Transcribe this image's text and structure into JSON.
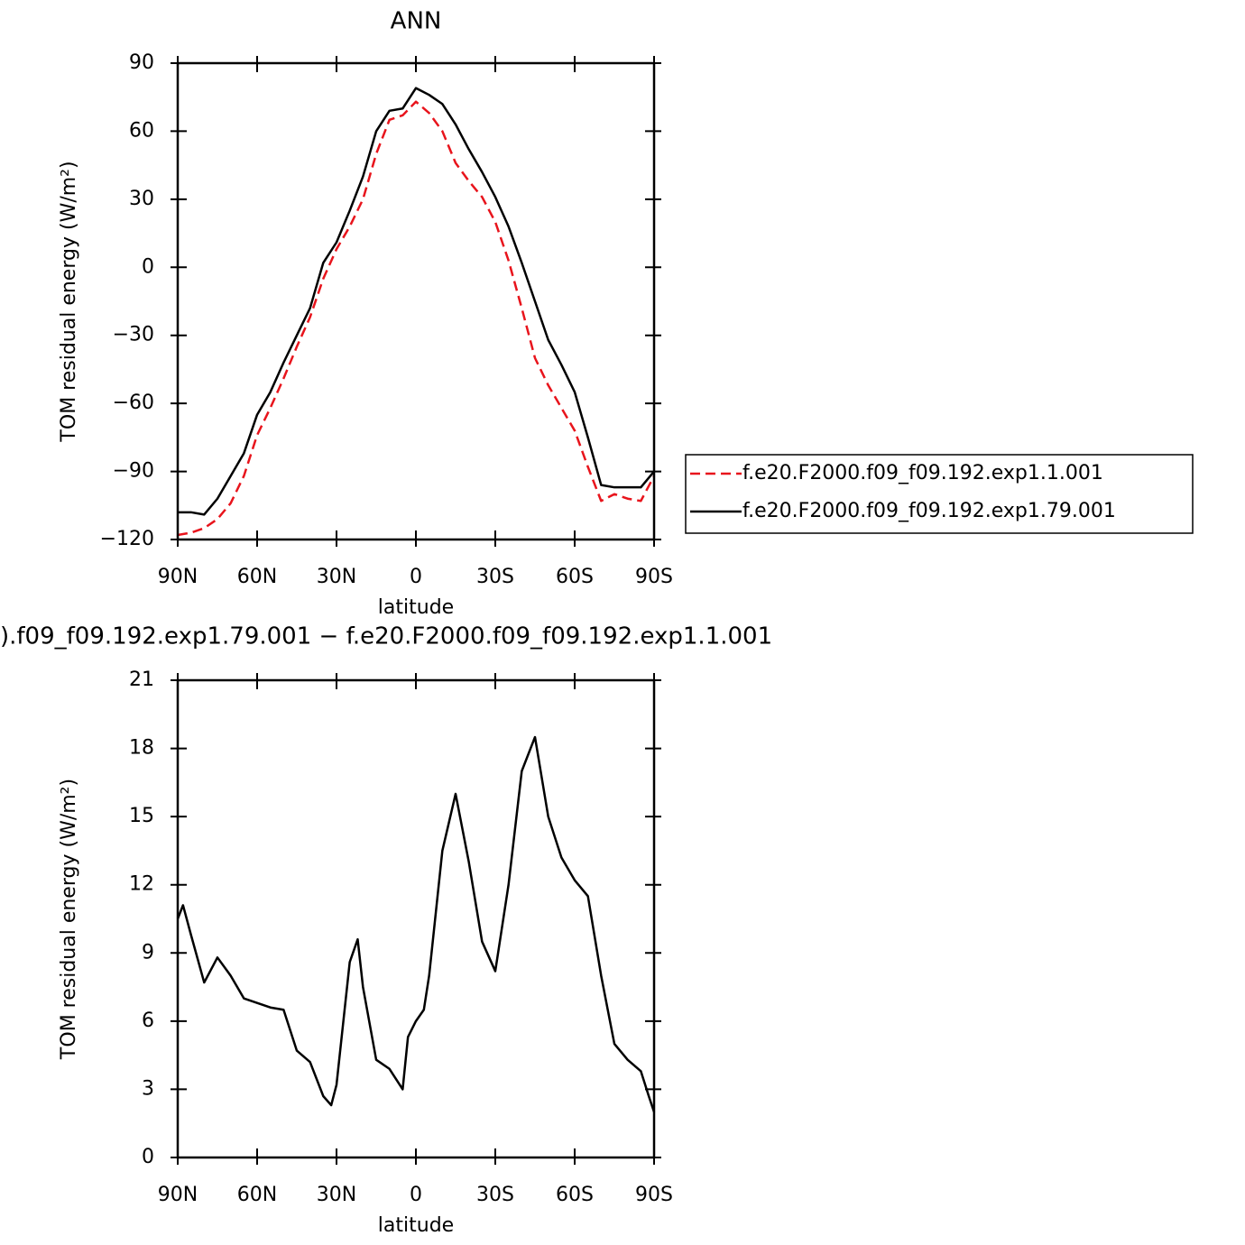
{
  "chart_data": [
    {
      "type": "line",
      "title": "ANN",
      "x_label": "latitude",
      "y_label": "TOM residual energy (W/m²)",
      "x": [
        90,
        85,
        80,
        75,
        70,
        65,
        60,
        55,
        50,
        45,
        40,
        35,
        30,
        25,
        20,
        15,
        10,
        5,
        0,
        -5,
        -10,
        -15,
        -20,
        -25,
        -30,
        -35,
        -40,
        -45,
        -50,
        -55,
        -60,
        -65,
        -70,
        -75,
        -80,
        -85,
        -90
      ],
      "xlim": [
        90,
        -90
      ],
      "xticks": [
        {
          "value": 90,
          "label": "90N"
        },
        {
          "value": 60,
          "label": "60N"
        },
        {
          "value": 30,
          "label": "30N"
        },
        0,
        {
          "value": -30,
          "label": "30S"
        },
        {
          "value": -60,
          "label": "60S"
        },
        {
          "value": -90,
          "label": "90S"
        }
      ],
      "ylim": [
        -120,
        90
      ],
      "yticks": [
        {
          "value": -120,
          "label": "−120"
        },
        {
          "value": -90,
          "label": "−90"
        },
        {
          "value": -60,
          "label": "−60"
        },
        {
          "value": -30,
          "label": "−30"
        },
        0,
        30,
        60,
        90
      ],
      "legend": "right",
      "series": [
        {
          "name": "f.e20.F2000.f09_f09.192.exp1.1.001",
          "color": "#e8141c",
          "line_style": "dashed",
          "values": [
            -118,
            -117,
            -115,
            -111,
            -104,
            -92,
            -74,
            -62,
            -49,
            -35,
            -22,
            -5,
            8,
            18,
            30,
            50,
            65,
            67,
            73,
            68,
            60,
            46,
            38,
            31,
            20,
            3,
            -18,
            -40,
            -52,
            -62,
            -72,
            -88,
            -103,
            -100,
            -102,
            -103,
            -92
          ]
        },
        {
          "name": "f.e20.F2000.f09_f09.192.exp1.79.001",
          "color": "#000000",
          "line_style": "solid",
          "values": [
            -108,
            -108,
            -109,
            -102,
            -92,
            -82,
            -65,
            -55,
            -42,
            -30,
            -18,
            2,
            11,
            25,
            40,
            60,
            69,
            70,
            79,
            76,
            72,
            63,
            52,
            42,
            31,
            18,
            2,
            -15,
            -32,
            -43,
            -55,
            -75,
            -96,
            -97,
            -97,
            -97,
            -90
          ]
        }
      ]
    },
    {
      "type": "line",
      "title": ").f09_f09.192.exp1.79.001 − f.e20.F2000.f09_f09.192.exp1.1.001",
      "x_label": "latitude",
      "y_label": "TOM residual energy (W/m²)",
      "x": [
        90,
        88,
        85,
        80,
        75,
        70,
        65,
        60,
        55,
        50,
        45,
        40,
        35,
        32,
        30,
        25,
        22,
        20,
        15,
        10,
        5,
        3,
        0,
        -3,
        -5,
        -10,
        -15,
        -20,
        -25,
        -30,
        -35,
        -40,
        -45,
        -50,
        -55,
        -60,
        -65,
        -70,
        -75,
        -80,
        -85,
        -88,
        -90
      ],
      "xlim": [
        90,
        -90
      ],
      "xticks": [
        {
          "value": 90,
          "label": "90N"
        },
        {
          "value": 60,
          "label": "60N"
        },
        {
          "value": 30,
          "label": "30N"
        },
        0,
        {
          "value": -30,
          "label": "30S"
        },
        {
          "value": -60,
          "label": "60S"
        },
        {
          "value": -90,
          "label": "90S"
        }
      ],
      "ylim": [
        0,
        21
      ],
      "yticks": [
        0,
        3,
        6,
        9,
        12,
        15,
        18,
        21
      ],
      "series": [
        {
          "color": "#000000",
          "line_style": "solid",
          "values": [
            10.5,
            11.1,
            9.8,
            7.7,
            8.8,
            8.0,
            7.0,
            6.8,
            6.6,
            6.5,
            4.7,
            4.2,
            2.7,
            2.3,
            3.2,
            8.6,
            9.6,
            7.5,
            4.3,
            3.9,
            3.0,
            5.3,
            6.0,
            6.5,
            8.0,
            13.5,
            16.0,
            13.0,
            9.5,
            8.2,
            12.0,
            17.0,
            18.5,
            15.0,
            13.2,
            12.2,
            11.5,
            8.0,
            5.0,
            4.3,
            3.8,
            2.7,
            2.0
          ]
        }
      ]
    }
  ]
}
